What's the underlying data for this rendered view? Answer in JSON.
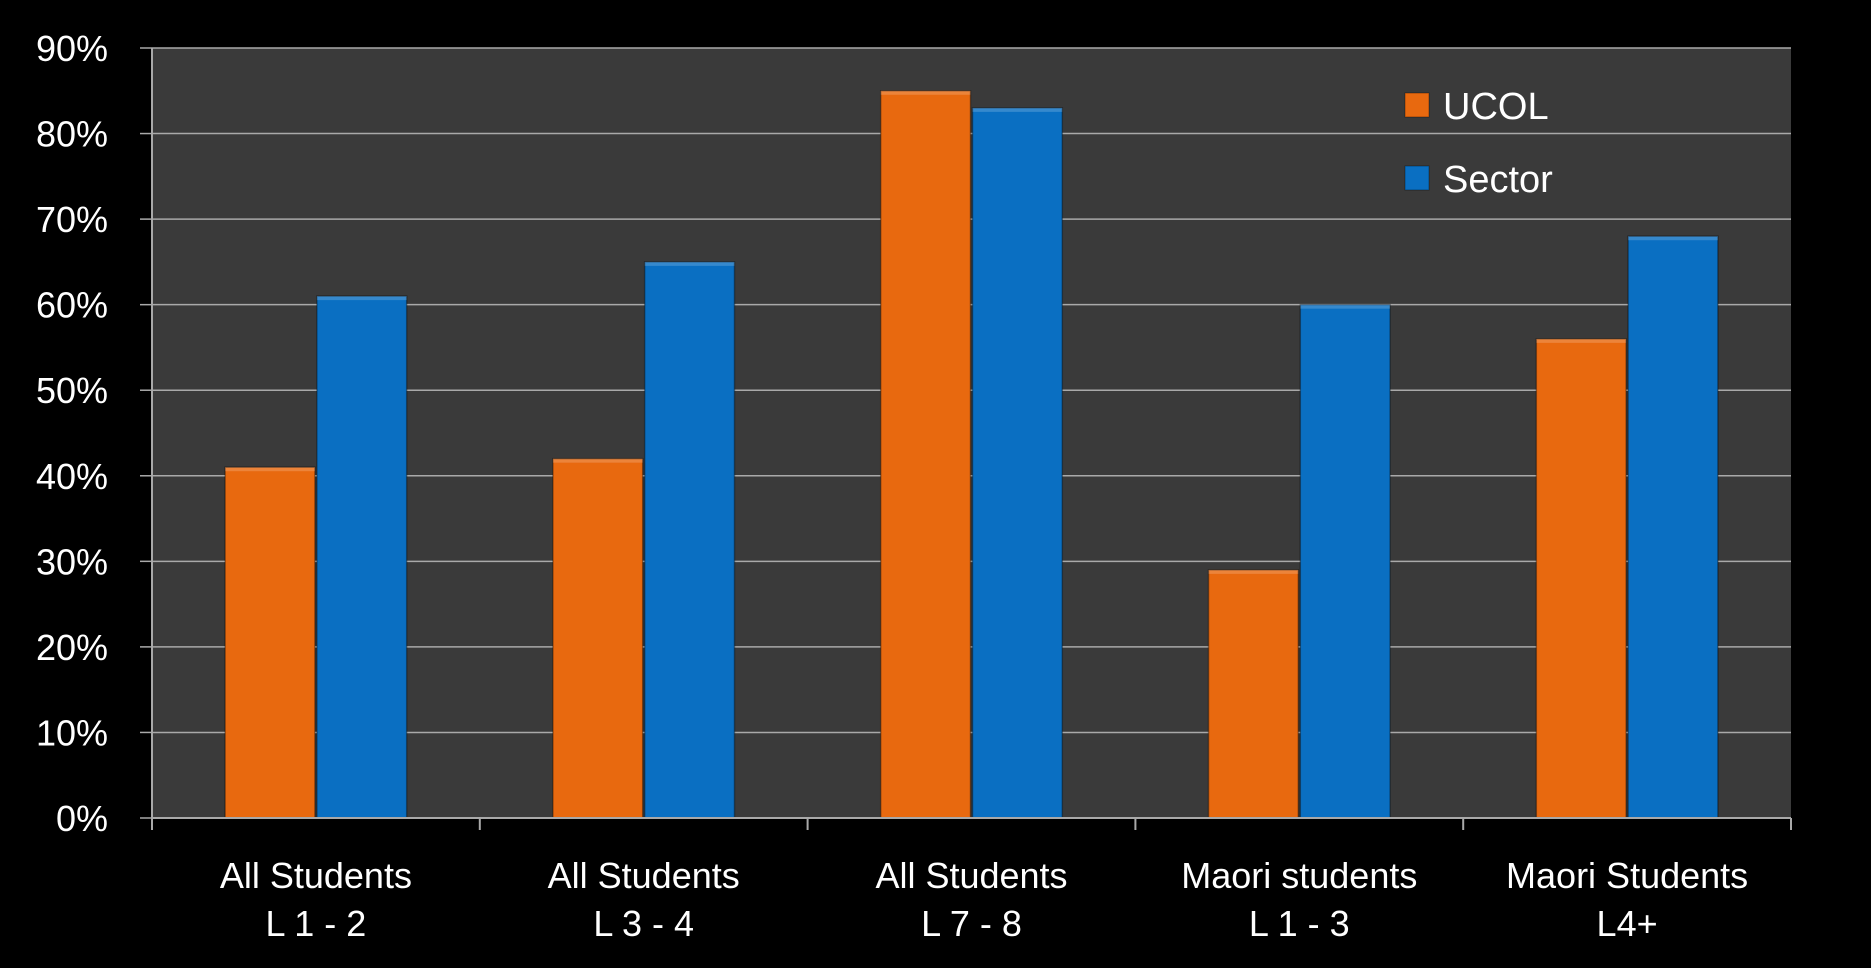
{
  "chart_data": {
    "type": "bar",
    "title": "",
    "xlabel": "",
    "ylabel": "",
    "categories": [
      [
        "All Students",
        "L 1 - 2"
      ],
      [
        "All Students",
        "L 3 - 4"
      ],
      [
        "All Students",
        "L 7 - 8"
      ],
      [
        "Maori students",
        "L 1 - 3"
      ],
      [
        "Maori Students",
        "L4+"
      ]
    ],
    "series": [
      {
        "name": "UCOL",
        "color": "#E8690F",
        "values": [
          41,
          42,
          85,
          29,
          56
        ]
      },
      {
        "name": "Sector",
        "color": "#0A6FC2",
        "values": [
          61,
          65,
          83,
          60,
          68
        ]
      }
    ],
    "ylim": [
      0,
      90
    ],
    "yticks": [
      0,
      10,
      20,
      30,
      40,
      50,
      60,
      70,
      80,
      90
    ],
    "ytick_labels": [
      "0%",
      "10%",
      "20%",
      "30%",
      "40%",
      "50%",
      "60%",
      "70%",
      "80%",
      "90%"
    ],
    "grid": true,
    "legend_position": "top-right",
    "colors": {
      "background": "#000000",
      "plot_area": "#3a3a3a",
      "gridline": "#a9a9a9",
      "text": "#ffffff"
    }
  }
}
